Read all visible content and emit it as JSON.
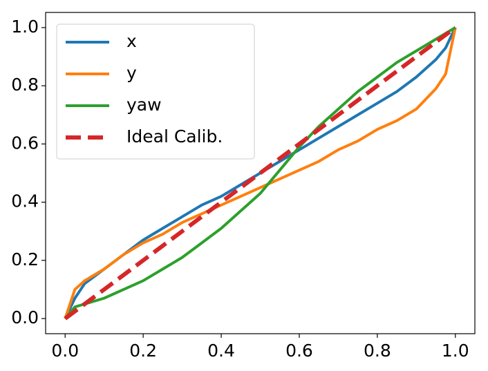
{
  "chart_data": {
    "type": "line",
    "x": [
      0,
      0.025,
      0.05,
      0.1,
      0.15,
      0.2,
      0.25,
      0.3,
      0.35,
      0.4,
      0.45,
      0.5,
      0.55,
      0.6,
      0.65,
      0.7,
      0.75,
      0.8,
      0.85,
      0.9,
      0.95,
      0.975,
      1
    ],
    "series": [
      {
        "name": "x",
        "color": "#1f77b4",
        "linestyle": "solid",
        "values": [
          0,
          0.07,
          0.12,
          0.17,
          0.22,
          0.27,
          0.31,
          0.35,
          0.39,
          0.42,
          0.46,
          0.5,
          0.54,
          0.58,
          0.62,
          0.66,
          0.7,
          0.74,
          0.78,
          0.83,
          0.89,
          0.93,
          1
        ]
      },
      {
        "name": "y",
        "color": "#ff7f0e",
        "linestyle": "solid",
        "values": [
          0,
          0.1,
          0.13,
          0.17,
          0.22,
          0.26,
          0.29,
          0.33,
          0.36,
          0.39,
          0.42,
          0.45,
          0.48,
          0.51,
          0.54,
          0.58,
          0.61,
          0.65,
          0.68,
          0.72,
          0.79,
          0.84,
          1
        ]
      },
      {
        "name": "yaw",
        "color": "#2ca02c",
        "linestyle": "solid",
        "values": [
          0,
          0.04,
          0.05,
          0.07,
          0.1,
          0.13,
          0.17,
          0.21,
          0.26,
          0.31,
          0.37,
          0.43,
          0.51,
          0.59,
          0.66,
          0.72,
          0.78,
          0.83,
          0.88,
          0.92,
          0.96,
          0.98,
          1
        ]
      },
      {
        "name": "Ideal Calib.",
        "color": "#d62728",
        "linestyle": "dashed",
        "values": [
          0,
          0.025,
          0.05,
          0.1,
          0.15,
          0.2,
          0.25,
          0.3,
          0.35,
          0.4,
          0.45,
          0.5,
          0.55,
          0.6,
          0.65,
          0.7,
          0.75,
          0.8,
          0.85,
          0.9,
          0.95,
          0.975,
          1
        ]
      }
    ],
    "xlim": [
      -0.05,
      1.05
    ],
    "ylim": [
      -0.052,
      1.052
    ],
    "xticks": [
      {
        "value": 0,
        "label": "0.0"
      },
      0.2,
      0.4,
      0.6,
      0.8,
      {
        "value": 1,
        "label": "1.0"
      }
    ],
    "yticks": [
      {
        "value": 0,
        "label": "0.0"
      },
      0.2,
      0.4,
      0.6,
      0.8,
      {
        "value": 1,
        "label": "1.0"
      }
    ],
    "legend": "upper left"
  }
}
